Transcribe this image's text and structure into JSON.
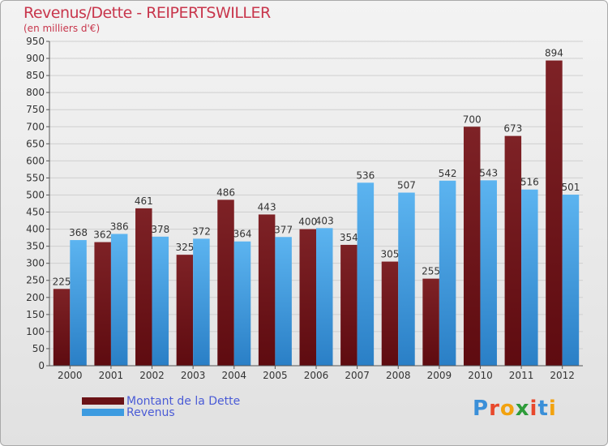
{
  "title": "Revenus/Dette - REIPERTSWILLER",
  "subtitle": "(en milliers d'€)",
  "chart_data": {
    "type": "bar",
    "categories": [
      "2000",
      "2001",
      "2002",
      "2003",
      "2004",
      "2005",
      "2006",
      "2007",
      "2008",
      "2009",
      "2010",
      "2011",
      "2012"
    ],
    "series": [
      {
        "name": "Montant de la Dette",
        "color": "#7a1a1e",
        "values": [
          225,
          362,
          461,
          325,
          486,
          443,
          400,
          354,
          305,
          255,
          700,
          673,
          894
        ]
      },
      {
        "name": "Revenus",
        "color": "#3d9be0",
        "values": [
          368,
          386,
          378,
          372,
          364,
          377,
          403,
          536,
          507,
          542,
          543,
          516,
          501
        ]
      }
    ],
    "ylim": [
      0,
      950
    ],
    "yticks": [
      0,
      50,
      100,
      150,
      200,
      250,
      300,
      350,
      400,
      450,
      500,
      550,
      600,
      650,
      700,
      750,
      800,
      850,
      900,
      950
    ],
    "grid": true,
    "legend": "bottom-left"
  },
  "legend": [
    {
      "label": "Montant de la Dette",
      "color": "#7a1a1e"
    },
    {
      "label": "Revenus",
      "color": "#3d9be0"
    }
  ],
  "logo": {
    "text": "Proxiti",
    "letters": [
      {
        "ch": "P",
        "color": "#3a8fd8"
      },
      {
        "ch": "r",
        "color": "#e8482c"
      },
      {
        "ch": "o",
        "color": "#f2a20f"
      },
      {
        "ch": "x",
        "color": "#2e9c3a"
      },
      {
        "ch": "i",
        "color": "#e8482c"
      },
      {
        "ch": "t",
        "color": "#3a8fd8"
      },
      {
        "ch": "i",
        "color": "#f2a20f"
      }
    ]
  }
}
